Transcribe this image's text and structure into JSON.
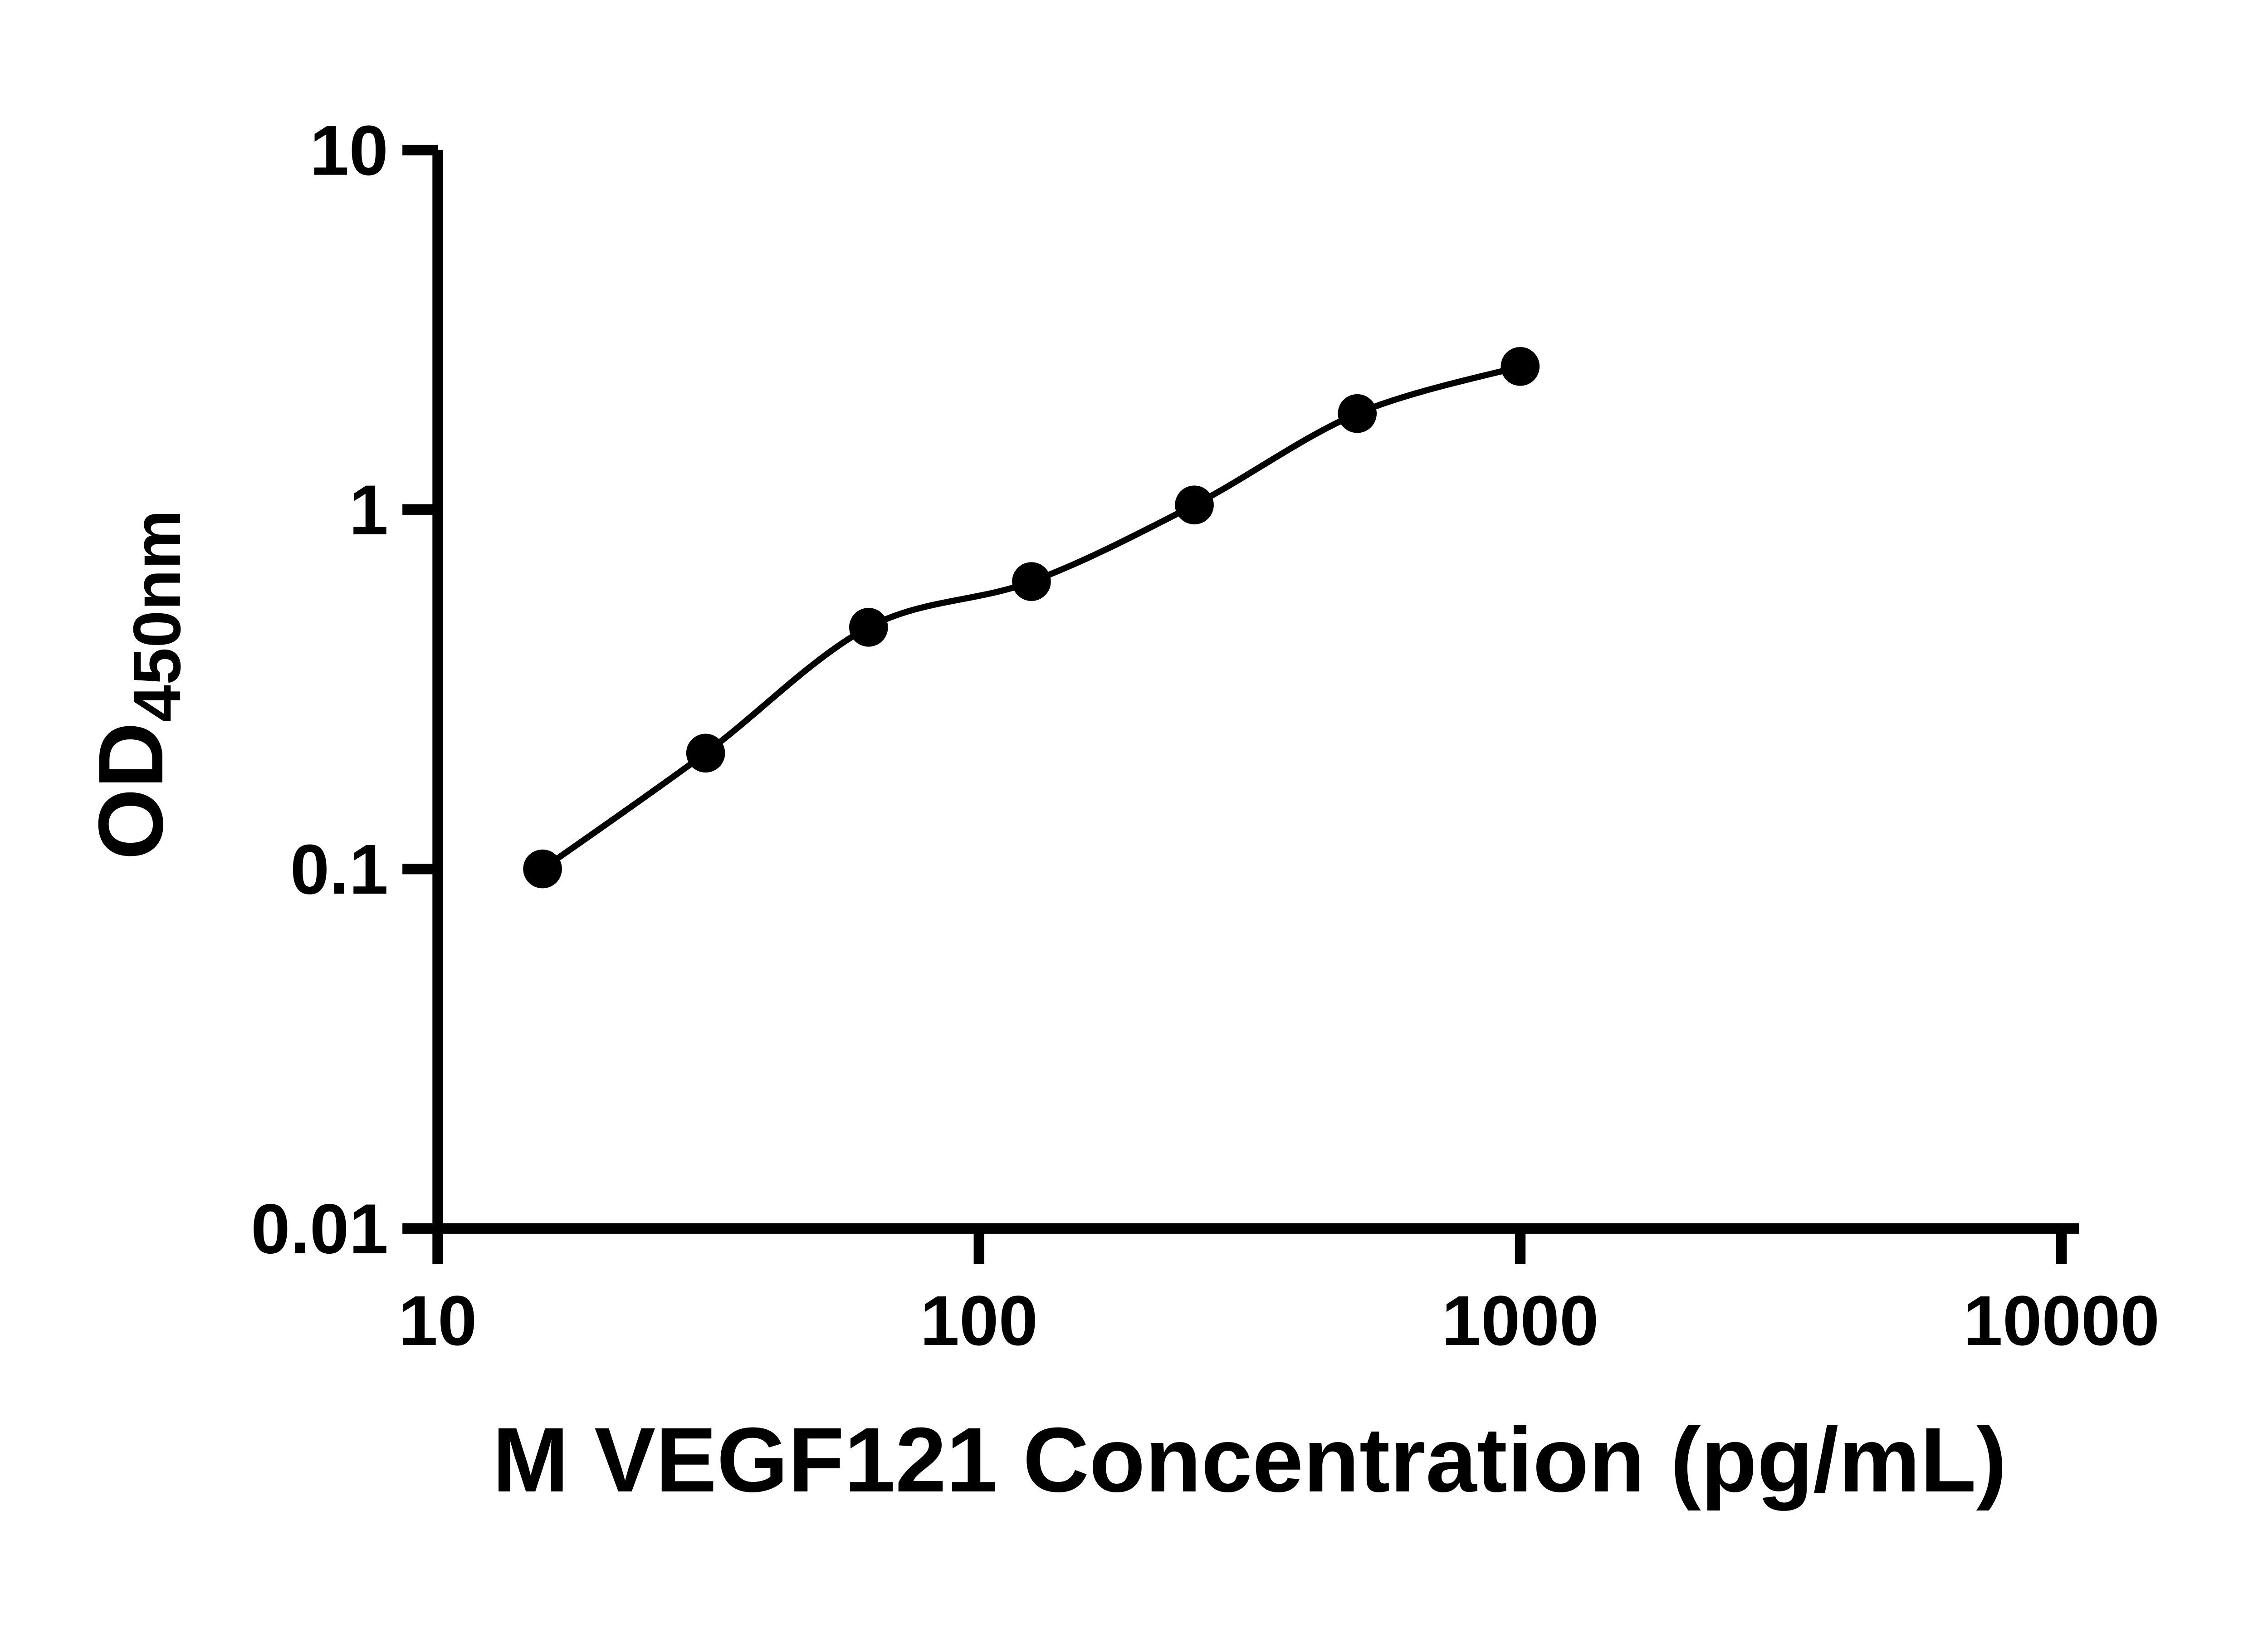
{
  "figure": {
    "background": "#ffffff",
    "text_color": "#000000"
  },
  "chart_data": {
    "type": "scatter",
    "title": "",
    "xlabel": "M VEGF121 Concentration (pg/mL)",
    "ylabel": "OD450nm",
    "ylabel_parts": {
      "main": "OD",
      "sub": "450nm"
    },
    "x": [
      15.625,
      31.25,
      62.5,
      125,
      250,
      500,
      1000
    ],
    "y": [
      0.1,
      0.21,
      0.47,
      0.63,
      1.03,
      1.85,
      2.5
    ],
    "x_scale": "log",
    "y_scale": "log",
    "xlim": [
      10,
      10000
    ],
    "ylim": [
      0.01,
      10
    ],
    "x_ticks": [
      {
        "value": 10,
        "label": "10"
      },
      {
        "value": 100,
        "label": "100"
      },
      {
        "value": 1000,
        "label": "1000"
      },
      {
        "value": 10000,
        "label": "10000"
      }
    ],
    "y_ticks": [
      {
        "value": 0.01,
        "label": "0.01"
      },
      {
        "value": 0.1,
        "label": "0.1"
      },
      {
        "value": 1,
        "label": "1"
      },
      {
        "value": 10,
        "label": "10"
      }
    ],
    "grid": false,
    "legend": null,
    "marker": "circle",
    "marker_color": "#000000",
    "line_color": "#000000",
    "curve_style": "smooth fit through data points"
  }
}
